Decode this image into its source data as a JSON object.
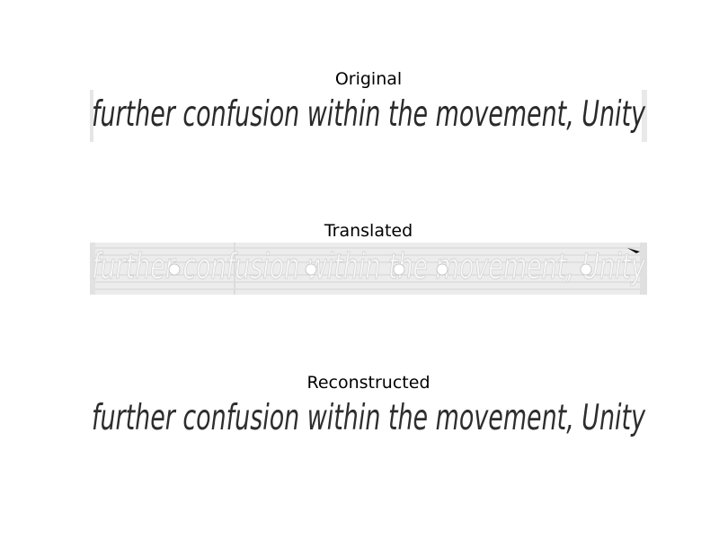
{
  "panels": [
    {
      "title": "Original",
      "handwriting": "further confusion within the movement, Unity"
    },
    {
      "title": "Translated",
      "handwriting": "further confusion within the movement, Unity"
    },
    {
      "title": "Reconstructed",
      "handwriting": "further confusion within the movement, Unity"
    }
  ],
  "colors": {
    "ink": "#2a2a2a",
    "faint_ink": "#cfcfcf",
    "noise_bg": "#ececec",
    "rule": "#d4d4d4"
  }
}
